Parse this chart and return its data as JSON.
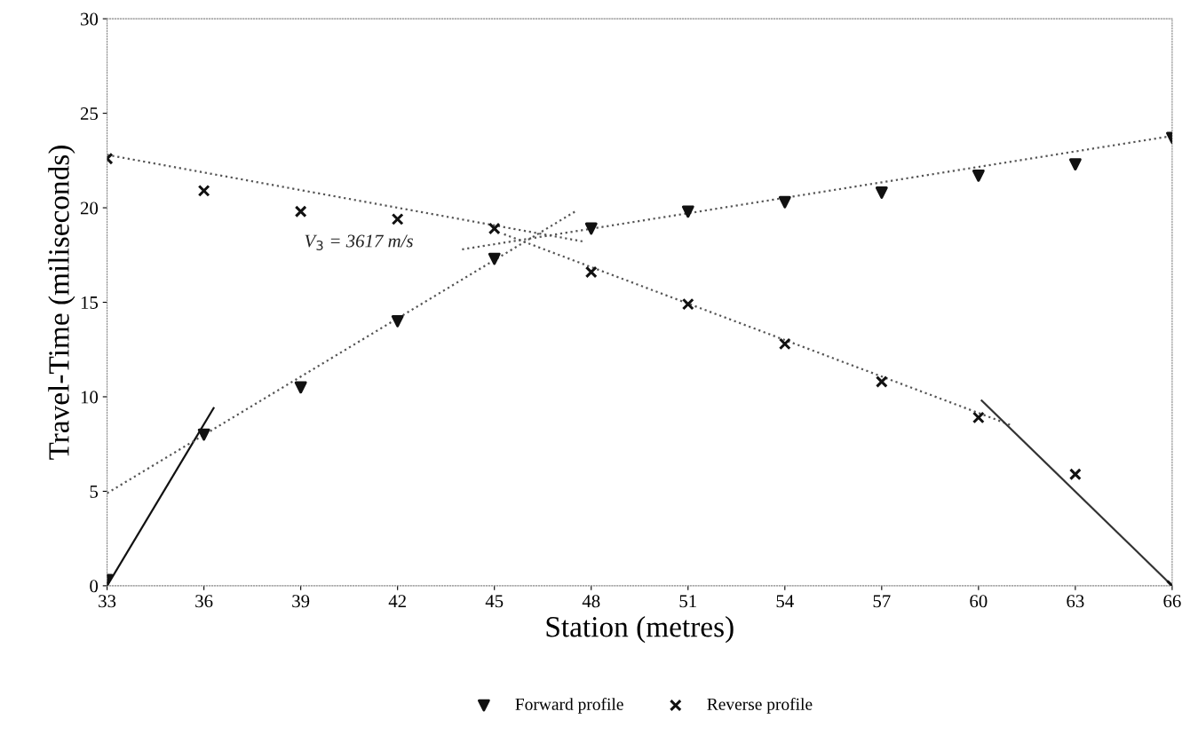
{
  "chart_data": {
    "type": "scatter",
    "xlabel": "Station (metres)",
    "ylabel": "Travel-Time (miliseconds)",
    "xlim": [
      33,
      66
    ],
    "xticks": [
      33,
      36,
      39,
      42,
      45,
      48,
      51,
      54,
      57,
      60,
      63,
      66
    ],
    "ylim": [
      0,
      30
    ],
    "yticks": [
      0,
      5,
      10,
      15,
      20,
      25,
      30
    ],
    "grid": false,
    "legend": "bottom",
    "series": [
      {
        "name": "Forward profile",
        "marker": "triangle",
        "color": "#111111",
        "x": [
          33,
          36,
          39,
          42,
          45,
          48,
          51,
          54,
          57,
          60,
          63,
          66
        ],
        "values": [
          0.3,
          8.0,
          10.5,
          14.0,
          17.3,
          18.9,
          19.8,
          20.3,
          20.8,
          21.7,
          22.3,
          23.7
        ]
      },
      {
        "name": "Reverse profile",
        "marker": "cross",
        "color": "#111111",
        "x": [
          33,
          36,
          39,
          42,
          45,
          48,
          51,
          54,
          57,
          60,
          63,
          66
        ],
        "values": [
          22.6,
          20.9,
          19.8,
          19.4,
          18.9,
          16.6,
          14.9,
          12.8,
          10.8,
          8.9,
          5.9,
          0
        ]
      },
      {
        "type": "line",
        "line_style": "solid",
        "color": "#111111",
        "x": [
          33,
          36.3
        ],
        "values": [
          0,
          9.4
        ]
      },
      {
        "type": "line",
        "line_style": "dotted",
        "color": "#555555",
        "x": [
          33,
          47.5
        ],
        "values": [
          4.9,
          19.8
        ]
      },
      {
        "type": "line",
        "line_style": "dotted",
        "color": "#555555",
        "x": [
          44,
          66
        ],
        "values": [
          17.8,
          23.8
        ]
      },
      {
        "type": "line",
        "line_style": "dotted",
        "color": "#555555",
        "x": [
          33,
          47.8
        ],
        "values": [
          22.8,
          18.2
        ]
      },
      {
        "type": "line",
        "line_style": "dotted",
        "color": "#555555",
        "x": [
          45.3,
          61
        ],
        "values": [
          18.6,
          8.5
        ]
      },
      {
        "type": "line",
        "line_style": "solid",
        "color": "#333333",
        "x": [
          60.1,
          66
        ],
        "values": [
          9.8,
          0
        ]
      }
    ],
    "annotations": [
      "V$_{3}$ = 3617 m/s"
    ]
  }
}
